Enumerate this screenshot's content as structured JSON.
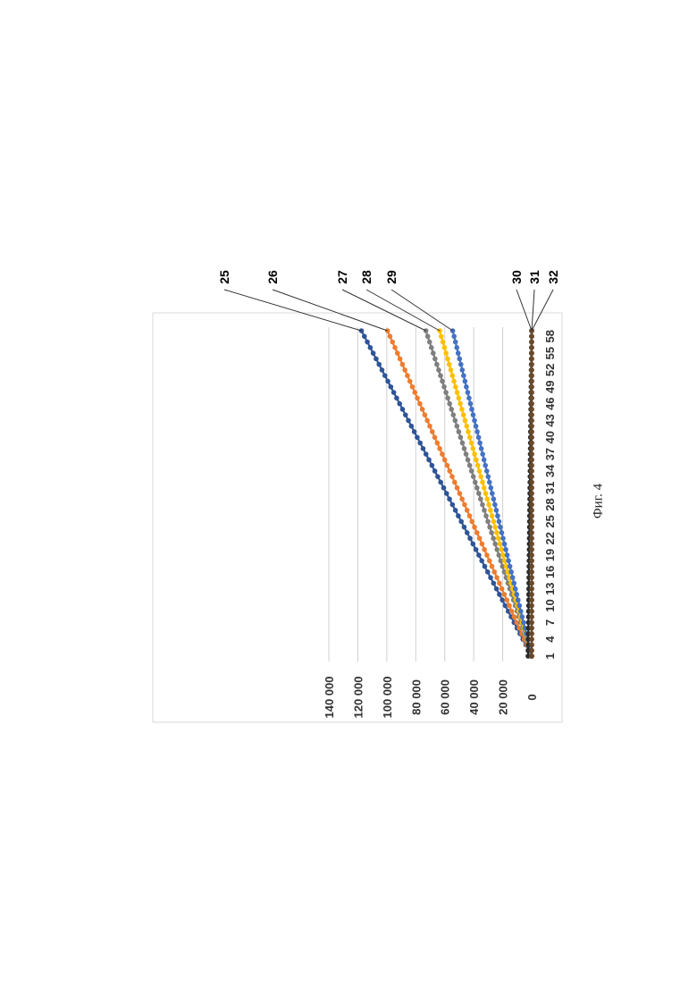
{
  "caption": "Фиг. 4",
  "chart_data": {
    "type": "line",
    "orientation": "rotated-90-ccw",
    "title": "",
    "xlabel": "",
    "ylabel": "",
    "x": [
      1,
      2,
      3,
      4,
      5,
      6,
      7,
      8,
      9,
      10,
      11,
      12,
      13,
      14,
      15,
      16,
      17,
      18,
      19,
      20,
      21,
      22,
      23,
      24,
      25,
      26,
      27,
      28,
      29,
      30,
      31,
      32,
      33,
      34,
      35,
      36,
      37,
      38,
      39,
      40,
      41,
      42,
      43,
      44,
      45,
      46,
      47,
      48,
      49,
      50,
      51,
      52,
      53,
      54,
      55,
      56,
      57,
      58,
      59
    ],
    "x_tick_labels": [
      "1",
      "4",
      "7",
      "10",
      "13",
      "16",
      "19",
      "22",
      "25",
      "28",
      "31",
      "34",
      "37",
      "40",
      "43",
      "46",
      "49",
      "52",
      "55",
      "58"
    ],
    "ylim": [
      0,
      140000
    ],
    "y_ticks": [
      0,
      20000,
      40000,
      60000,
      80000,
      100000,
      120000,
      140000
    ],
    "y_tick_labels": [
      "0",
      "20 000",
      "40 000",
      "60 000",
      "80 000",
      "100 000",
      "120 000",
      "140 000"
    ],
    "grid": true,
    "series": [
      {
        "name": "25",
        "color": "#2f5597",
        "start": 0,
        "end": 117500
      },
      {
        "name": "26",
        "color": "#ed7d31",
        "start": 0,
        "end": 99500
      },
      {
        "name": "27",
        "color": "#7f7f7f",
        "start": 0,
        "end": 73000
      },
      {
        "name": "28",
        "color": "#ffc000",
        "start": 0,
        "end": 63500
      },
      {
        "name": "29",
        "color": "#4472c4",
        "start": 0,
        "end": 54500
      },
      {
        "name": "30",
        "color": "#2b2b2b",
        "start": 2500,
        "end": 0
      },
      {
        "name": "31",
        "color": "#333333",
        "start": 0,
        "end": 0
      },
      {
        "name": "32",
        "color": "#6b4a2a",
        "start": 0,
        "end": 0
      }
    ]
  }
}
